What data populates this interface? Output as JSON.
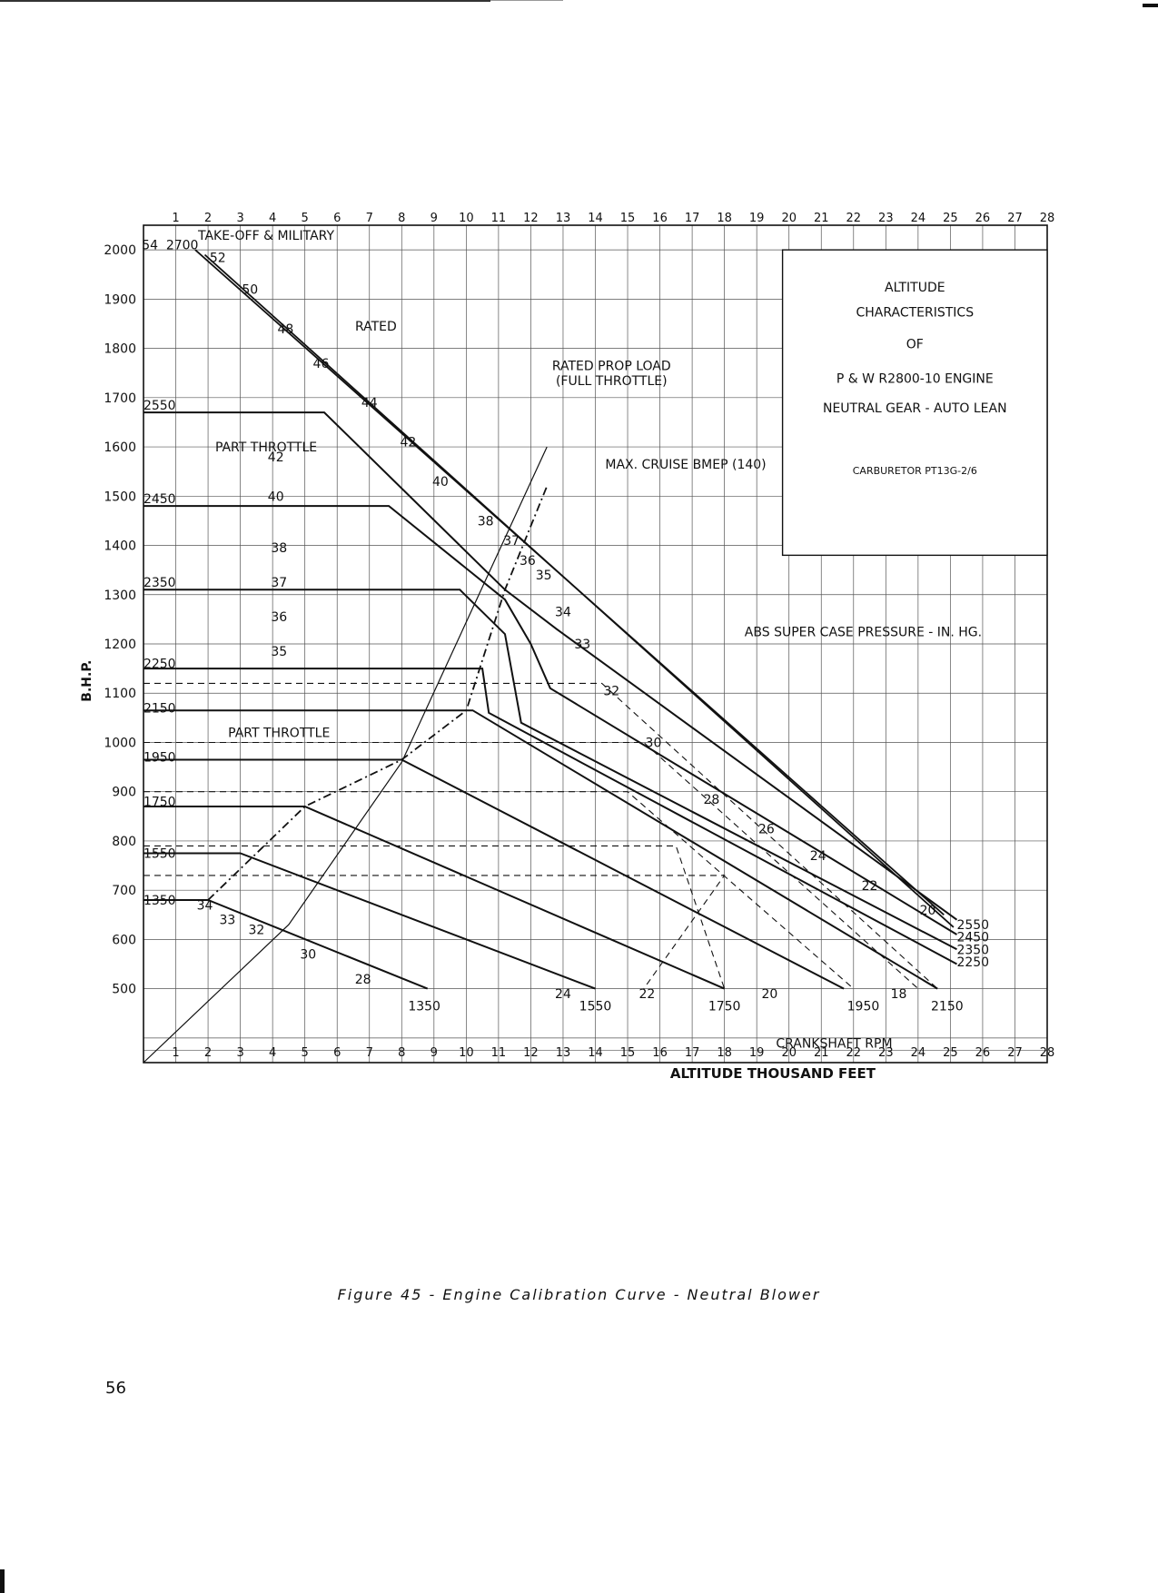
{
  "caption": "Figure 45 - Engine Calibration Curve - Neutral Blower",
  "page_number": "56",
  "chart_data": {
    "type": "line",
    "title": "ALTITUDE CHARACTERISTICS OF P & W R2800-10 ENGINE",
    "title_lines": [
      "ALTITUDE",
      "CHARACTERISTICS",
      "OF",
      "P & W R2800-10 ENGINE",
      "NEUTRAL GEAR - AUTO LEAN"
    ],
    "subtitle": "CARBURETOR PT13G-2/6",
    "xlabel": "ALTITUDE THOUSAND FEET",
    "ylabel": "B.H.P.",
    "xlim": [
      0,
      28
    ],
    "ylim": [
      350,
      2050
    ],
    "x_ticks": [
      1,
      2,
      3,
      4,
      5,
      6,
      7,
      8,
      9,
      10,
      11,
      12,
      13,
      14,
      15,
      16,
      17,
      18,
      19,
      20,
      21,
      22,
      23,
      24,
      25,
      26,
      27,
      28
    ],
    "y_ticks": [
      500,
      600,
      700,
      800,
      900,
      1000,
      1100,
      1200,
      1300,
      1400,
      1500,
      1600,
      1700,
      1800,
      1900,
      2000
    ],
    "grid": true,
    "rpm_lines": [
      {
        "rpm": "2550",
        "label": "2550",
        "points": [
          [
            0,
            1670
          ],
          [
            5.6,
            1670
          ],
          [
            11.2,
            1310
          ],
          [
            12.8,
            1230
          ],
          [
            25.2,
            640
          ]
        ]
      },
      {
        "rpm": "2450",
        "label": "2450",
        "points": [
          [
            0,
            1480
          ],
          [
            7.6,
            1480
          ],
          [
            11.2,
            1290
          ],
          [
            12.0,
            1200
          ],
          [
            12.6,
            1110
          ],
          [
            25.2,
            610
          ]
        ]
      },
      {
        "rpm": "2350",
        "label": "2350",
        "points": [
          [
            0,
            1310
          ],
          [
            9.8,
            1310
          ],
          [
            11.2,
            1220
          ],
          [
            11.7,
            1040
          ],
          [
            25.2,
            580
          ]
        ]
      },
      {
        "rpm": "2250",
        "label": "2250",
        "points": [
          [
            0,
            1150
          ],
          [
            10.5,
            1150
          ],
          [
            10.7,
            1060
          ],
          [
            25.2,
            550
          ]
        ]
      },
      {
        "rpm": "2150",
        "label": "2150",
        "points": [
          [
            0,
            1065
          ],
          [
            10.2,
            1065
          ],
          [
            24.6,
            500
          ]
        ]
      },
      {
        "rpm": "1950",
        "label": "1950",
        "points": [
          [
            0,
            965
          ],
          [
            8.0,
            965
          ],
          [
            21.7,
            500
          ]
        ]
      },
      {
        "rpm": "1750",
        "label": "1750",
        "points": [
          [
            0,
            870
          ],
          [
            5.0,
            870
          ],
          [
            18.0,
            500
          ]
        ]
      },
      {
        "rpm": "1550",
        "label": "1550",
        "points": [
          [
            0,
            775
          ],
          [
            3.0,
            775
          ],
          [
            14.0,
            500
          ]
        ]
      },
      {
        "rpm": "1350",
        "label": "1350",
        "points": [
          [
            0,
            680
          ],
          [
            2.0,
            680
          ],
          [
            8.8,
            500
          ]
        ]
      }
    ],
    "mp_lines": [
      {
        "mp": "32",
        "points": [
          [
            0,
            1120
          ],
          [
            14.2,
            1120
          ],
          [
            24.6,
            500
          ]
        ]
      },
      {
        "mp": "30",
        "points": [
          [
            0,
            1000
          ],
          [
            15.5,
            1000
          ],
          [
            24.0,
            500
          ]
        ]
      },
      {
        "mp": "28",
        "points": [
          [
            0,
            900
          ],
          [
            15.0,
            900
          ],
          [
            22.0,
            500
          ]
        ]
      },
      {
        "mp": "24",
        "points": [
          [
            0,
            790
          ],
          [
            16.5,
            790
          ],
          [
            18.0,
            500
          ]
        ]
      },
      {
        "mp": "22",
        "points": [
          [
            0,
            730
          ],
          [
            18.0,
            730
          ],
          [
            15.5,
            500
          ]
        ]
      }
    ],
    "series": [
      {
        "name": "TAKE-OFF & MILITARY",
        "points": [
          [
            1.6,
            2000
          ],
          [
            24.8,
            650
          ]
        ]
      },
      {
        "name": "RATED",
        "points": [
          [
            1.9,
            1990
          ],
          [
            25.1,
            625
          ]
        ]
      },
      {
        "name": "RATED PROP LOAD (FULL THROTTLE)",
        "points": [
          [
            0,
            350
          ],
          [
            4.5,
            630
          ],
          [
            8.0,
            960
          ],
          [
            12.5,
            1600
          ]
        ]
      },
      {
        "name": "MAX. CRUISE BMEP (140)",
        "points": [
          [
            2.0,
            680
          ],
          [
            5.0,
            870
          ],
          [
            8.0,
            965
          ],
          [
            10.0,
            1065
          ],
          [
            11.2,
            1310
          ],
          [
            12.5,
            1520
          ]
        ]
      }
    ],
    "curve_labels": [
      {
        "text": "54",
        "x": 0.2,
        "y": 2010
      },
      {
        "text": "2700",
        "x": 1.2,
        "y": 2010
      },
      {
        "text": "52",
        "x": 2.3,
        "y": 1985
      },
      {
        "text": "50",
        "x": 3.3,
        "y": 1920
      },
      {
        "text": "48",
        "x": 4.4,
        "y": 1840
      },
      {
        "text": "46",
        "x": 5.5,
        "y": 1770
      },
      {
        "text": "44",
        "x": 7.0,
        "y": 1690
      },
      {
        "text": "42",
        "x": 8.2,
        "y": 1610
      },
      {
        "text": "40",
        "x": 9.2,
        "y": 1530
      },
      {
        "text": "38",
        "x": 10.6,
        "y": 1450
      },
      {
        "text": "37",
        "x": 11.4,
        "y": 1410
      },
      {
        "text": "36",
        "x": 11.9,
        "y": 1370
      },
      {
        "text": "35",
        "x": 12.4,
        "y": 1340
      },
      {
        "text": "34",
        "x": 13.0,
        "y": 1265
      },
      {
        "text": "33",
        "x": 13.6,
        "y": 1200
      },
      {
        "text": "32",
        "x": 14.5,
        "y": 1105
      },
      {
        "text": "30",
        "x": 15.8,
        "y": 1000
      },
      {
        "text": "28",
        "x": 17.6,
        "y": 885
      },
      {
        "text": "26",
        "x": 19.3,
        "y": 825
      },
      {
        "text": "24",
        "x": 20.9,
        "y": 770
      },
      {
        "text": "22",
        "x": 22.5,
        "y": 710
      },
      {
        "text": "20",
        "x": 24.3,
        "y": 660
      },
      {
        "text": "42",
        "x": 4.1,
        "y": 1580
      },
      {
        "text": "40",
        "x": 4.1,
        "y": 1500
      },
      {
        "text": "38",
        "x": 4.2,
        "y": 1395
      },
      {
        "text": "37",
        "x": 4.2,
        "y": 1325
      },
      {
        "text": "36",
        "x": 4.2,
        "y": 1255
      },
      {
        "text": "35",
        "x": 4.2,
        "y": 1185
      },
      {
        "text": "2550",
        "x": 0.5,
        "y": 1685
      },
      {
        "text": "2450",
        "x": 0.5,
        "y": 1495
      },
      {
        "text": "2350",
        "x": 0.5,
        "y": 1325
      },
      {
        "text": "2250",
        "x": 0.5,
        "y": 1160
      },
      {
        "text": "2150",
        "x": 0.5,
        "y": 1070
      },
      {
        "text": "1950",
        "x": 0.5,
        "y": 970
      },
      {
        "text": "1750",
        "x": 0.5,
        "y": 880
      },
      {
        "text": "1550",
        "x": 0.5,
        "y": 775
      },
      {
        "text": "1350",
        "x": 0.5,
        "y": 680
      },
      {
        "text": "34",
        "x": 1.9,
        "y": 670
      },
      {
        "text": "33",
        "x": 2.6,
        "y": 640
      },
      {
        "text": "32",
        "x": 3.5,
        "y": 620
      },
      {
        "text": "30",
        "x": 5.1,
        "y": 570
      },
      {
        "text": "28",
        "x": 6.8,
        "y": 520
      },
      {
        "text": "1350",
        "x": 8.7,
        "y": 465
      },
      {
        "text": "24",
        "x": 13.0,
        "y": 490
      },
      {
        "text": "1550",
        "x": 14.0,
        "y": 465
      },
      {
        "text": "22",
        "x": 15.6,
        "y": 490
      },
      {
        "text": "1750",
        "x": 18.0,
        "y": 465
      },
      {
        "text": "20",
        "x": 19.4,
        "y": 490
      },
      {
        "text": "1950",
        "x": 22.3,
        "y": 465
      },
      {
        "text": "18",
        "x": 23.4,
        "y": 490
      },
      {
        "text": "2150",
        "x": 24.9,
        "y": 465
      },
      {
        "text": "2550",
        "x": 25.7,
        "y": 630
      },
      {
        "text": "2450",
        "x": 25.7,
        "y": 605
      },
      {
        "text": "2350",
        "x": 25.7,
        "y": 580
      },
      {
        "text": "2250",
        "x": 25.7,
        "y": 555
      }
    ],
    "annotations": [
      {
        "text": "TAKE-OFF & MILITARY",
        "x": 3.8,
        "y": 2030
      },
      {
        "text": "RATED",
        "x": 7.2,
        "y": 1845
      },
      {
        "text": "RATED PROP LOAD",
        "x": 14.5,
        "y": 1765
      },
      {
        "text": "(FULL THROTTLE)",
        "x": 14.5,
        "y": 1735
      },
      {
        "text": "MAX. CRUISE BMEP (140)",
        "x": 16.8,
        "y": 1565
      },
      {
        "text": "ABS SUPER CASE PRESSURE - IN. HG.",
        "x": 22.3,
        "y": 1225
      },
      {
        "text": "PART THROTTLE",
        "x": 3.8,
        "y": 1600
      },
      {
        "text": "PART THROTTLE",
        "x": 4.2,
        "y": 1020
      },
      {
        "text": "CRANKSHAFT RPM",
        "x": 21.4,
        "y": 390
      }
    ]
  }
}
